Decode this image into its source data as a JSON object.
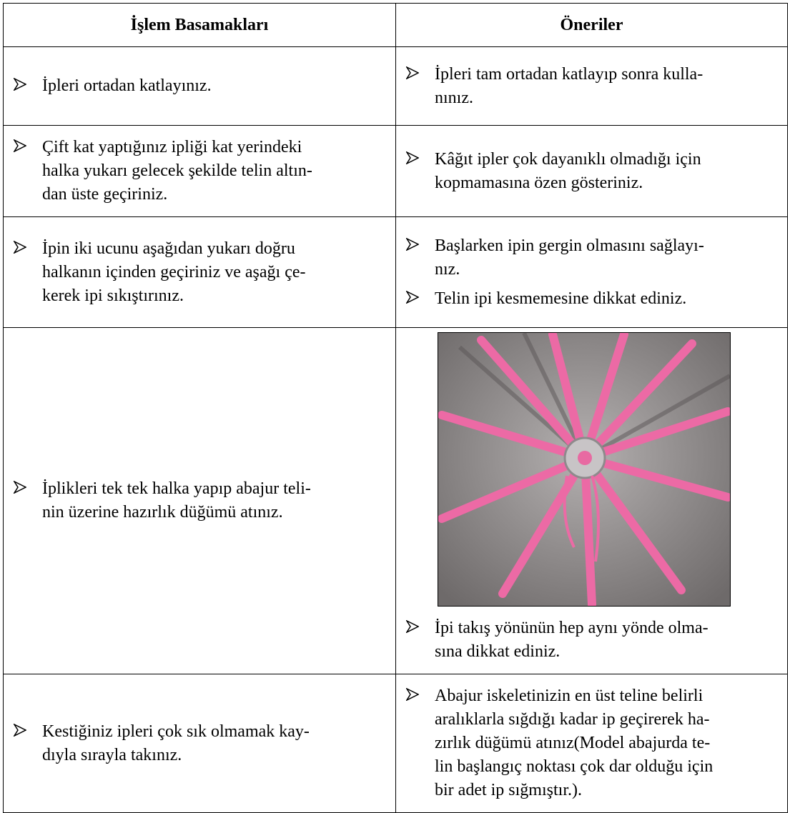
{
  "table": {
    "headers": [
      "İşlem Basamakları",
      "Öneriler"
    ],
    "rows": [
      {
        "steps": [
          [
            "İpleri ortadan katlayınız."
          ]
        ],
        "suggestions": [
          [
            "İpleri tam ortadan katlayıp sonra kulla-",
            "nınız."
          ]
        ]
      },
      {
        "steps": [
          [
            "Çift kat yaptığınız ipliği kat yerindeki",
            "halka yukarı gelecek şekilde telin altın-",
            "dan üste geçiriniz."
          ]
        ],
        "suggestions": [
          [
            "Kâğıt ipler çok dayanıklı olmadığı için",
            "kopmamasına özen gösteriniz."
          ]
        ]
      },
      {
        "steps": [
          [
            "İpin iki ucunu aşağıdan yukarı doğru",
            "halkanın içinden geçiriniz ve aşağı çe-",
            "kerek ipi sıkıştırınız."
          ]
        ],
        "suggestions": [
          [
            "Başlarken ipin gergin olmasını sağlayı-",
            "nız."
          ],
          [
            "Telin ipi kesmemesine dikkat ediniz."
          ]
        ]
      },
      {
        "steps": [
          [
            "İplikleri tek tek halka yapıp abajur teli-",
            "nin üzerine hazırlık düğümü atınız."
          ]
        ],
        "suggestions": [
          [
            "İpi takış yönünün hep aynı yönde olma-",
            "sına dikkat ediniz."
          ]
        ]
      },
      {
        "steps": [
          [
            "Kestiğiniz ipleri çok sık olmamak kay-",
            "dıyla sırayla takınız."
          ]
        ],
        "suggestions": [
          [
            "Abajur iskeletinizin en üst teline belirli",
            "aralıklarla sığdığı kadar ip geçirerek ha-",
            "zırlık düğümü atınız(Model abajurda te-",
            "lin başlangıç noktası çok dar olduğu için",
            "bir adet ip sığmıştır.)."
          ]
        ]
      }
    ]
  }
}
